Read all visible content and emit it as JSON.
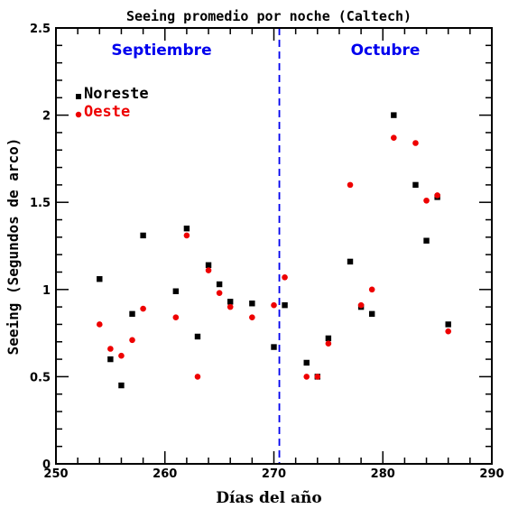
{
  "chart_data": {
    "type": "scatter",
    "title": "Seeing promedio por noche (Caltech)",
    "xlabel": "Días del año",
    "ylabel": "Seeing (Segundos de arco)",
    "xlim": [
      250,
      290
    ],
    "ylim": [
      0,
      2.5
    ],
    "x_ticks": [
      "250",
      "260",
      "270",
      "280",
      "290"
    ],
    "y_ticks": [
      "0",
      "0.5",
      "1",
      "1.5",
      "2",
      "2.5"
    ],
    "grid": false,
    "legend_position": "top-left",
    "divider_x": 270.5,
    "annotations": [
      {
        "text": "Septiembre",
        "color": "#0000ee"
      },
      {
        "text": "Octubre",
        "color": "#0000ee"
      }
    ],
    "series": [
      {
        "name": "Noreste",
        "marker": "square",
        "color": "#000000",
        "points": [
          [
            254,
            1.06
          ],
          [
            255,
            0.6
          ],
          [
            256,
            0.45
          ],
          [
            257,
            0.86
          ],
          [
            258,
            1.31
          ],
          [
            261,
            0.99
          ],
          [
            262,
            1.35
          ],
          [
            263,
            0.73
          ],
          [
            264,
            1.14
          ],
          [
            265,
            1.03
          ],
          [
            266,
            0.93
          ],
          [
            268,
            0.92
          ],
          [
            270,
            0.67
          ],
          [
            271,
            0.91
          ],
          [
            273,
            0.58
          ],
          [
            274,
            0.5
          ],
          [
            275,
            0.72
          ],
          [
            277,
            1.16
          ],
          [
            278,
            0.9
          ],
          [
            279,
            0.86
          ],
          [
            281,
            2.0
          ],
          [
            283,
            1.6
          ],
          [
            284,
            1.28
          ],
          [
            285,
            1.53
          ],
          [
            286,
            0.8
          ]
        ]
      },
      {
        "name": "Oeste",
        "marker": "circle",
        "color": "#ee0000",
        "points": [
          [
            254,
            0.8
          ],
          [
            255,
            0.66
          ],
          [
            256,
            0.62
          ],
          [
            257,
            0.71
          ],
          [
            258,
            0.89
          ],
          [
            261,
            0.84
          ],
          [
            262,
            1.31
          ],
          [
            263,
            0.5
          ],
          [
            264,
            1.11
          ],
          [
            265,
            0.98
          ],
          [
            266,
            0.9
          ],
          [
            268,
            0.84
          ],
          [
            270,
            0.91
          ],
          [
            271,
            1.07
          ],
          [
            273,
            0.5
          ],
          [
            274,
            0.5
          ],
          [
            275,
            0.69
          ],
          [
            277,
            1.6
          ],
          [
            278,
            0.91
          ],
          [
            279,
            1.0
          ],
          [
            281,
            1.87
          ],
          [
            283,
            1.84
          ],
          [
            284,
            1.51
          ],
          [
            285,
            1.54
          ],
          [
            286,
            0.76
          ]
        ]
      }
    ]
  }
}
